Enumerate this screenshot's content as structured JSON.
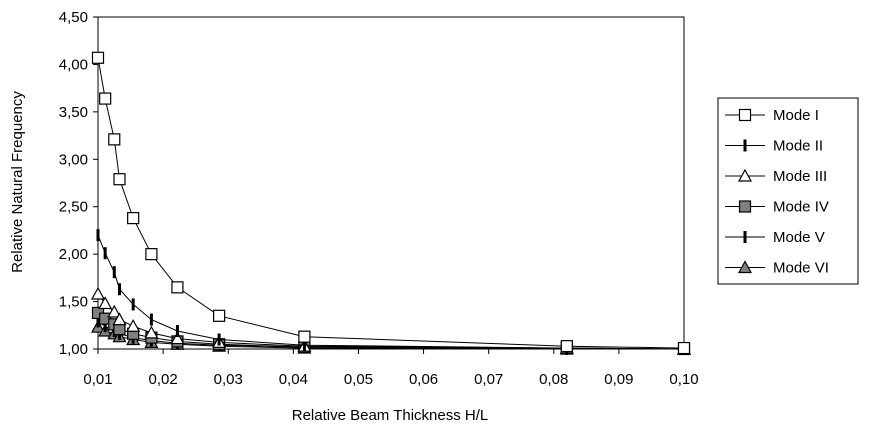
{
  "chart_data": {
    "type": "line",
    "xlabel": "Relative Beam Thickness H/L",
    "ylabel": "Relative Natural Frequency",
    "xlim": [
      0.01,
      0.1
    ],
    "ylim": [
      1.0,
      4.5
    ],
    "xticks": [
      "0,01",
      "0,02",
      "0,03",
      "0,04",
      "0,05",
      "0,06",
      "0,07",
      "0,08",
      "0,09",
      "0,10"
    ],
    "yticks": [
      "1,00",
      "1,50",
      "2,00",
      "2,50",
      "3,00",
      "3,50",
      "4,00",
      "4,50"
    ],
    "grid": false,
    "legend_position": "right",
    "series": [
      {
        "name": "Mode I",
        "marker": "square-open",
        "x": [
          0.01,
          0.0111,
          0.0125,
          0.0133,
          0.0154,
          0.0182,
          0.0222,
          0.0286,
          0.0417,
          0.082,
          0.1
        ],
        "y": [
          4.07,
          3.64,
          3.21,
          2.79,
          2.38,
          2.0,
          1.65,
          1.35,
          1.13,
          1.03,
          1.01
        ]
      },
      {
        "name": "Mode II",
        "marker": "dash",
        "x": [
          0.01,
          0.0111,
          0.0125,
          0.0133,
          0.0154,
          0.0182,
          0.0222,
          0.0286,
          0.0417,
          0.082,
          0.1
        ],
        "y": [
          2.2,
          2.01,
          1.81,
          1.63,
          1.47,
          1.31,
          1.19,
          1.1,
          1.04,
          1.01,
          1.0
        ]
      },
      {
        "name": "Mode III",
        "marker": "triangle-open",
        "x": [
          0.01,
          0.0111,
          0.0125,
          0.0133,
          0.0154,
          0.0182,
          0.0222,
          0.0286,
          0.0417,
          0.082,
          0.1
        ],
        "y": [
          1.58,
          1.48,
          1.39,
          1.31,
          1.24,
          1.17,
          1.11,
          1.07,
          1.03,
          1.01,
          1.0
        ]
      },
      {
        "name": "Mode IV",
        "marker": "square-gray",
        "x": [
          0.01,
          0.0111,
          0.0125,
          0.0133,
          0.0154,
          0.0182,
          0.0222,
          0.0286,
          0.0417,
          0.082,
          0.1
        ],
        "y": [
          1.38,
          1.32,
          1.26,
          1.21,
          1.16,
          1.12,
          1.08,
          1.05,
          1.02,
          1.01,
          1.0
        ]
      },
      {
        "name": "Mode V",
        "marker": "dash",
        "x": [
          0.01,
          0.0111,
          0.0125,
          0.0133,
          0.0154,
          0.0182,
          0.0222,
          0.0286,
          0.0417,
          0.082,
          0.1
        ],
        "y": [
          1.29,
          1.24,
          1.19,
          1.16,
          1.12,
          1.09,
          1.06,
          1.04,
          1.02,
          1.0,
          1.0
        ]
      },
      {
        "name": "Mode VI",
        "marker": "triangle-gray",
        "x": [
          0.01,
          0.0111,
          0.0125,
          0.0133,
          0.0154,
          0.0182,
          0.0222,
          0.0286,
          0.0417,
          0.082,
          0.1
        ],
        "y": [
          1.23,
          1.19,
          1.16,
          1.13,
          1.1,
          1.07,
          1.05,
          1.03,
          1.01,
          1.0,
          1.0
        ]
      }
    ]
  }
}
